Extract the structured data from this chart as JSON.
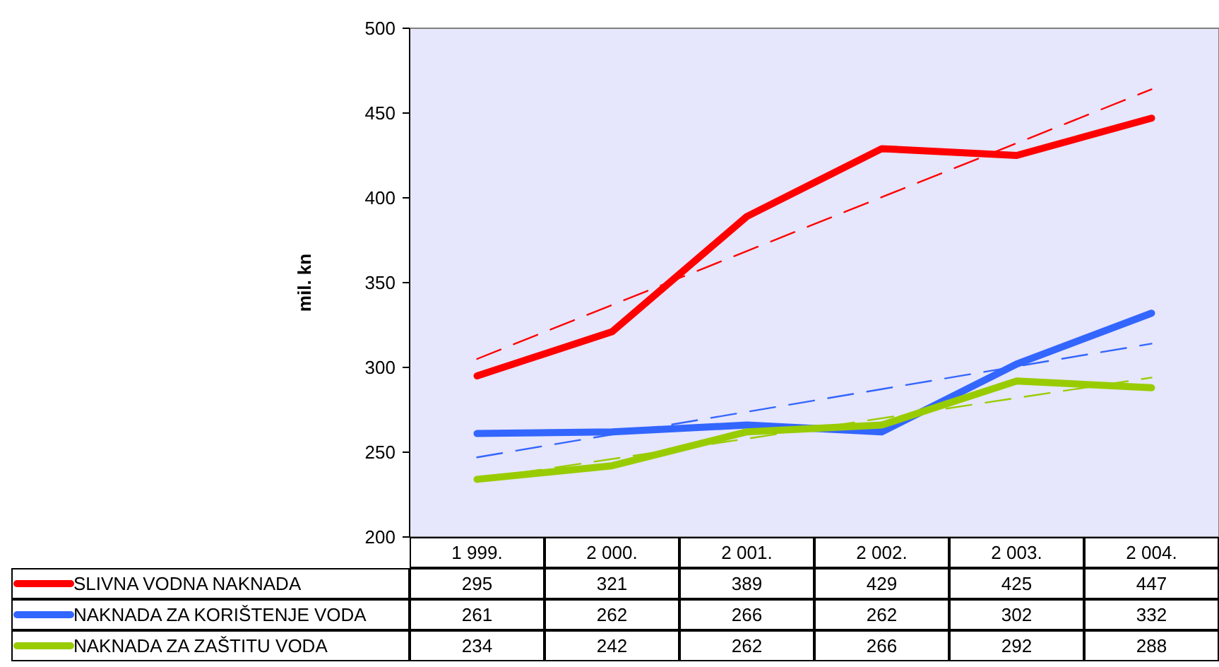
{
  "chart_data": {
    "type": "line",
    "ylabel": "mil. kn",
    "categories": [
      "1 999.",
      "2 000.",
      "2 001.",
      "2 002.",
      "2 003.",
      "2 004."
    ],
    "ylim": [
      200,
      500
    ],
    "yticks": [
      200,
      250,
      300,
      350,
      400,
      450,
      500
    ],
    "grid": false,
    "legend": "bottom",
    "marker": "none",
    "series": [
      {
        "name": "SLIVNA VODNA NAKNADA",
        "color": "#ff0000",
        "values": [
          295,
          321,
          389,
          429,
          425,
          447
        ],
        "value_labels": [
          "295",
          "321",
          "389",
          "429",
          "425",
          "447"
        ],
        "line_style": "solid"
      },
      {
        "name": "NAKNADA ZA KORIŠTENJE VODA",
        "color": "#3366ff",
        "values": [
          261,
          262,
          266,
          262,
          302,
          332
        ],
        "value_labels": [
          "261",
          "262",
          "266",
          "262",
          "302",
          "332"
        ],
        "line_style": "solid"
      },
      {
        "name": "NAKNADA ZA ZAŠTITU VODA",
        "color": "#99cc00",
        "values": [
          234,
          242,
          262,
          266,
          292,
          288
        ],
        "value_labels": [
          "234",
          "242",
          "262",
          "266",
          "292",
          "288"
        ],
        "line_style": "solid"
      },
      {
        "color": "#ff0000",
        "x": [
          "1 999.",
          "2 004."
        ],
        "values": [
          305,
          464
        ],
        "line_style": "dashed"
      },
      {
        "color": "#3366ff",
        "x": [
          "1 999.",
          "2 004."
        ],
        "values": [
          247,
          314
        ],
        "line_style": "dashed"
      },
      {
        "color": "#99cc00",
        "x": [
          "1 999.",
          "2 004."
        ],
        "values": [
          234,
          294
        ],
        "line_style": "dashed"
      }
    ]
  }
}
